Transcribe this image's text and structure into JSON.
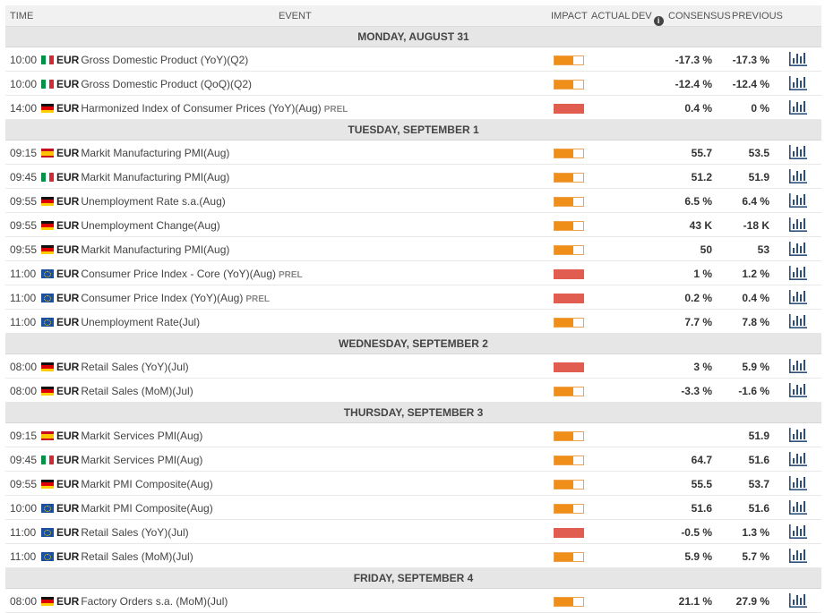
{
  "header": {
    "time": "TIME",
    "event": "EVENT",
    "impact": "IMPACT",
    "actual": "ACTUAL",
    "dev": "DEV",
    "consensus": "CONSENSUS",
    "previous": "PREVIOUS"
  },
  "icons": {
    "info": "info-icon",
    "chart": "bar-chart-icon"
  },
  "colors": {
    "impact_medium": "#f08e1a",
    "impact_high": "#e05d50",
    "chart_icon": "#2c4f7c"
  },
  "days": [
    {
      "label": "MONDAY, AUGUST 31",
      "events": [
        {
          "time": "10:00",
          "flag": "it",
          "currency": "EUR",
          "name": "Gross Domestic Product (YoY)(Q2)",
          "prel": "",
          "impact": "medium",
          "consensus": "-17.3 %",
          "previous": "-17.3 %"
        },
        {
          "time": "10:00",
          "flag": "it",
          "currency": "EUR",
          "name": "Gross Domestic Product (QoQ)(Q2)",
          "prel": "",
          "impact": "medium",
          "consensus": "-12.4 %",
          "previous": "-12.4 %"
        },
        {
          "time": "14:00",
          "flag": "de",
          "currency": "EUR",
          "name": "Harmonized Index of Consumer Prices (YoY)(Aug)",
          "prel": "PREL",
          "impact": "high",
          "consensus": "0.4 %",
          "previous": "0 %"
        }
      ]
    },
    {
      "label": "TUESDAY, SEPTEMBER 1",
      "events": [
        {
          "time": "09:15",
          "flag": "es",
          "currency": "EUR",
          "name": "Markit Manufacturing PMI(Aug)",
          "prel": "",
          "impact": "medium",
          "consensus": "55.7",
          "previous": "53.5"
        },
        {
          "time": "09:45",
          "flag": "it",
          "currency": "EUR",
          "name": "Markit Manufacturing PMI(Aug)",
          "prel": "",
          "impact": "medium",
          "consensus": "51.2",
          "previous": "51.9"
        },
        {
          "time": "09:55",
          "flag": "de",
          "currency": "EUR",
          "name": "Unemployment Rate s.a.(Aug)",
          "prel": "",
          "impact": "medium",
          "consensus": "6.5 %",
          "previous": "6.4 %"
        },
        {
          "time": "09:55",
          "flag": "de",
          "currency": "EUR",
          "name": "Unemployment Change(Aug)",
          "prel": "",
          "impact": "medium",
          "consensus": "43 K",
          "previous": "-18 K"
        },
        {
          "time": "09:55",
          "flag": "de",
          "currency": "EUR",
          "name": "Markit Manufacturing PMI(Aug)",
          "prel": "",
          "impact": "medium",
          "consensus": "50",
          "previous": "53"
        },
        {
          "time": "11:00",
          "flag": "eu",
          "currency": "EUR",
          "name": "Consumer Price Index - Core (YoY)(Aug)",
          "prel": "PREL",
          "impact": "high",
          "consensus": "1 %",
          "previous": "1.2 %"
        },
        {
          "time": "11:00",
          "flag": "eu",
          "currency": "EUR",
          "name": "Consumer Price Index (YoY)(Aug)",
          "prel": "PREL",
          "impact": "high",
          "consensus": "0.2 %",
          "previous": "0.4 %"
        },
        {
          "time": "11:00",
          "flag": "eu",
          "currency": "EUR",
          "name": "Unemployment Rate(Jul)",
          "prel": "",
          "impact": "medium",
          "consensus": "7.7 %",
          "previous": "7.8 %"
        }
      ]
    },
    {
      "label": "WEDNESDAY, SEPTEMBER 2",
      "events": [
        {
          "time": "08:00",
          "flag": "de",
          "currency": "EUR",
          "name": "Retail Sales (YoY)(Jul)",
          "prel": "",
          "impact": "high",
          "consensus": "3 %",
          "previous": "5.9 %"
        },
        {
          "time": "08:00",
          "flag": "de",
          "currency": "EUR",
          "name": "Retail Sales (MoM)(Jul)",
          "prel": "",
          "impact": "medium",
          "consensus": "-3.3 %",
          "previous": "-1.6 %"
        }
      ]
    },
    {
      "label": "THURSDAY, SEPTEMBER 3",
      "events": [
        {
          "time": "09:15",
          "flag": "es",
          "currency": "EUR",
          "name": "Markit Services PMI(Aug)",
          "prel": "",
          "impact": "medium",
          "consensus": "",
          "previous": "51.9"
        },
        {
          "time": "09:45",
          "flag": "it",
          "currency": "EUR",
          "name": "Markit Services PMI(Aug)",
          "prel": "",
          "impact": "medium",
          "consensus": "64.7",
          "previous": "51.6"
        },
        {
          "time": "09:55",
          "flag": "de",
          "currency": "EUR",
          "name": "Markit PMI Composite(Aug)",
          "prel": "",
          "impact": "medium",
          "consensus": "55.5",
          "previous": "53.7"
        },
        {
          "time": "10:00",
          "flag": "eu",
          "currency": "EUR",
          "name": "Markit PMI Composite(Aug)",
          "prel": "",
          "impact": "medium",
          "consensus": "51.6",
          "previous": "51.6"
        },
        {
          "time": "11:00",
          "flag": "eu",
          "currency": "EUR",
          "name": "Retail Sales (YoY)(Jul)",
          "prel": "",
          "impact": "high",
          "consensus": "-0.5 %",
          "previous": "1.3 %"
        },
        {
          "time": "11:00",
          "flag": "eu",
          "currency": "EUR",
          "name": "Retail Sales (MoM)(Jul)",
          "prel": "",
          "impact": "medium",
          "consensus": "5.9 %",
          "previous": "5.7 %"
        }
      ]
    },
    {
      "label": "FRIDAY, SEPTEMBER 4",
      "events": [
        {
          "time": "08:00",
          "flag": "de",
          "currency": "EUR",
          "name": "Factory Orders s.a. (MoM)(Jul)",
          "prel": "",
          "impact": "medium",
          "consensus": "21.1 %",
          "previous": "27.9 %"
        }
      ]
    }
  ]
}
